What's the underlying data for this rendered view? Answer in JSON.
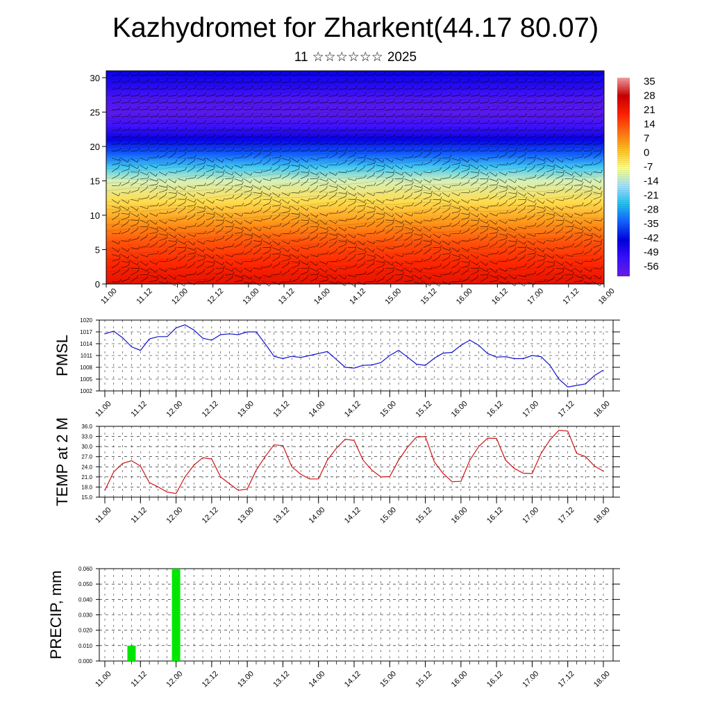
{
  "title": "Kazhydromet for Zharkent(44.17 80.07)",
  "subtitle": {
    "day": "11",
    "month_glyphs": "☆☆☆☆☆☆",
    "year": "2025"
  },
  "colors": {
    "pmsl_line": "#1010d0",
    "temp_line": "#d01010",
    "precip_bar": "#00e600",
    "colormap": [
      "#6a1ee0",
      "#3a10ff",
      "#0000e0",
      "#1060ff",
      "#20c0f0",
      "#a0e0ff",
      "#ffff80",
      "#ffc020",
      "#ff7010",
      "#ff2000",
      "#c80000",
      "#f0a0a0"
    ]
  },
  "time_ticks": [
    "11.00",
    "11.12",
    "12.00",
    "12.12",
    "13.00",
    "13.12",
    "14.00",
    "14.12",
    "15.00",
    "15.12",
    "16.00",
    "16.12",
    "17.00",
    "17.12",
    "18.00"
  ],
  "chart_data": [
    {
      "type": "heatmap",
      "description_type": "time-height cross-section of temperature with wind barbs",
      "x_range": [
        "11.00",
        "18.00"
      ],
      "y_ticks": [
        0,
        5,
        10,
        15,
        20,
        25,
        30
      ],
      "ylim": [
        0,
        31
      ],
      "colorbar_labels": [
        "35",
        "28",
        "21",
        "14",
        "7",
        "0",
        "-7",
        "-14",
        "-21",
        "-28",
        "-35",
        "-42",
        "-49",
        "-56"
      ],
      "colorbar_range": [
        -63,
        38
      ],
      "layers": [
        {
          "level": 0,
          "value": 24
        },
        {
          "level": 3,
          "value": 19
        },
        {
          "level": 6,
          "value": 14
        },
        {
          "level": 9,
          "value": 6
        },
        {
          "level": 12,
          "value": -3
        },
        {
          "level": 15,
          "value": -12
        },
        {
          "level": 17,
          "value": -24
        },
        {
          "level": 19,
          "value": -36
        },
        {
          "level": 21,
          "value": -46
        },
        {
          "level": 23,
          "value": -55
        },
        {
          "level": 25,
          "value": -60
        },
        {
          "level": 27,
          "value": -57
        },
        {
          "level": 29,
          "value": -50
        },
        {
          "level": 31,
          "value": -46
        }
      ]
    },
    {
      "type": "line",
      "ylabel": "PMSL",
      "y_ticks": [
        1002,
        1005,
        1008,
        1011,
        1014,
        1017,
        1020
      ],
      "ylim": [
        1002,
        1020
      ],
      "step_hours": 3,
      "values": [
        1016.5,
        1017.2,
        1015.5,
        1013.2,
        1012.3,
        1015.2,
        1015.8,
        1015.8,
        1018.0,
        1018.8,
        1017.5,
        1015.4,
        1014.9,
        1016.3,
        1016.5,
        1016.3,
        1017.0,
        1017.0,
        1014.0,
        1010.8,
        1010.2,
        1010.8,
        1010.5,
        1011.0,
        1011.5,
        1012.0,
        1010.0,
        1008.0,
        1007.8,
        1008.5,
        1008.6,
        1009.2,
        1011.0,
        1012.3,
        1010.6,
        1008.8,
        1008.5,
        1010.3,
        1011.6,
        1011.8,
        1013.6,
        1014.9,
        1013.6,
        1011.5,
        1010.6,
        1010.7,
        1010.2,
        1010.2,
        1011.0,
        1010.7,
        1008.5,
        1005.0,
        1003.0,
        1003.4,
        1003.8,
        1005.9,
        1007.3
      ]
    },
    {
      "type": "line",
      "ylabel": "TEMP at 2 M",
      "y_ticks": [
        "15.0",
        "18.0",
        "21.0",
        "24.0",
        "27.0",
        "30.0",
        "33.0",
        "36.0"
      ],
      "ylim": [
        15,
        36
      ],
      "step_hours": 3,
      "values": [
        17.0,
        22.5,
        25.0,
        25.8,
        24.2,
        19.3,
        18.0,
        16.5,
        16.1,
        21.0,
        24.5,
        26.7,
        26.3,
        21.0,
        19.0,
        17.0,
        17.4,
        23.0,
        27.0,
        30.5,
        30.3,
        24.0,
        21.8,
        20.4,
        20.4,
        26.0,
        29.5,
        32.2,
        31.8,
        26.0,
        23.0,
        21.0,
        21.1,
        26.0,
        29.8,
        32.8,
        33.0,
        25.5,
        22.0,
        19.6,
        19.7,
        26.0,
        30.0,
        32.5,
        32.4,
        26.0,
        23.5,
        22.1,
        22.0,
        28.0,
        32.0,
        34.8,
        34.6,
        28.0,
        27.0,
        24.2,
        22.7
      ]
    },
    {
      "type": "bar",
      "ylabel": "PRECIP, mm",
      "y_ticks": [
        "0.000",
        "0.010",
        "0.020",
        "0.030",
        "0.040",
        "0.050",
        "0.060"
      ],
      "ylim": [
        0,
        0.06
      ],
      "bars": [
        {
          "hour": 9,
          "value": 0.01
        },
        {
          "hour": 24,
          "value": 0.06
        }
      ]
    }
  ]
}
